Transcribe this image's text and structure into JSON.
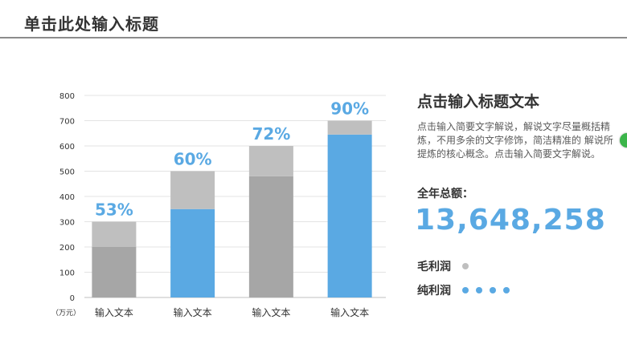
{
  "header": {
    "title": "单击此处输入标题"
  },
  "side": {
    "heading": "点击输入标题文本",
    "description": "点击输入简要文字解说，解说文字尽量概括精炼，不用多余的文字修饰，简洁精准的 解说所提炼的核心概念。点击输入简要文字解说。",
    "total_label": "全年总额：",
    "total_value": "13,648,258"
  },
  "legend": [
    {
      "name": "毛利润",
      "color": "#bfbfbf",
      "dots": 1
    },
    {
      "name": "纯利润",
      "color": "#5aa9e3",
      "dots": 4
    }
  ],
  "chart_data": {
    "type": "bar",
    "stacked": true,
    "categories": [
      "输入文本",
      "输入文本",
      "输入文本",
      "输入文本"
    ],
    "y_unit_label": "（万元）",
    "ylim": [
      0,
      800
    ],
    "ytick_step": 100,
    "grid": true,
    "series": [
      {
        "values": [
          200,
          350,
          480,
          645
        ],
        "colors": [
          "#a6a6a6",
          "#5aa9e3",
          "#a6a6a6",
          "#5aa9e3"
        ]
      },
      {
        "values": [
          100,
          150,
          120,
          55
        ],
        "colors": [
          "#bfbfbf",
          "#bfbfbf",
          "#bfbfbf",
          "#bfbfbf"
        ]
      }
    ],
    "bar_labels": [
      "53%",
      "60%",
      "72%",
      "90%"
    ],
    "label_color": "#5aa9e3"
  }
}
